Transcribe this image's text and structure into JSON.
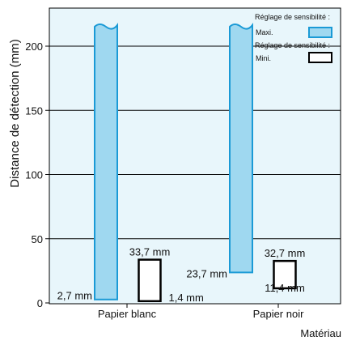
{
  "chart_data": {
    "type": "bar",
    "ylabel": "Distance de détection (mm)",
    "xlabel": "Matériau",
    "ylim": [
      0,
      220
    ],
    "yticks": [
      0,
      50,
      100,
      150,
      200
    ],
    "grid": true,
    "categories": [
      "Papier blanc",
      "Papier noir"
    ],
    "legend_title_max": "Réglage de sensibilité :",
    "legend_title_min": "Réglage de sensibilité :",
    "series": [
      {
        "name": "Maxi.",
        "color": "#9fd8f0",
        "border": "#1a9ad6",
        "truncated": true,
        "ranges": [
          [
            2.7,
            220
          ],
          [
            23.7,
            220
          ]
        ],
        "labels": [
          "2,7 mm",
          "23,7 mm"
        ]
      },
      {
        "name": "Mini.",
        "color": "#ffffff",
        "border": "#000000",
        "truncated": false,
        "ranges": [
          [
            1.4,
            33.7
          ],
          [
            11.4,
            32.7
          ]
        ],
        "labels_top": [
          "33,7 mm",
          "32,7 mm"
        ],
        "labels_bottom": [
          "1,4 mm",
          "11,4 mm"
        ]
      }
    ],
    "plot_background": "#e8f6fb"
  }
}
